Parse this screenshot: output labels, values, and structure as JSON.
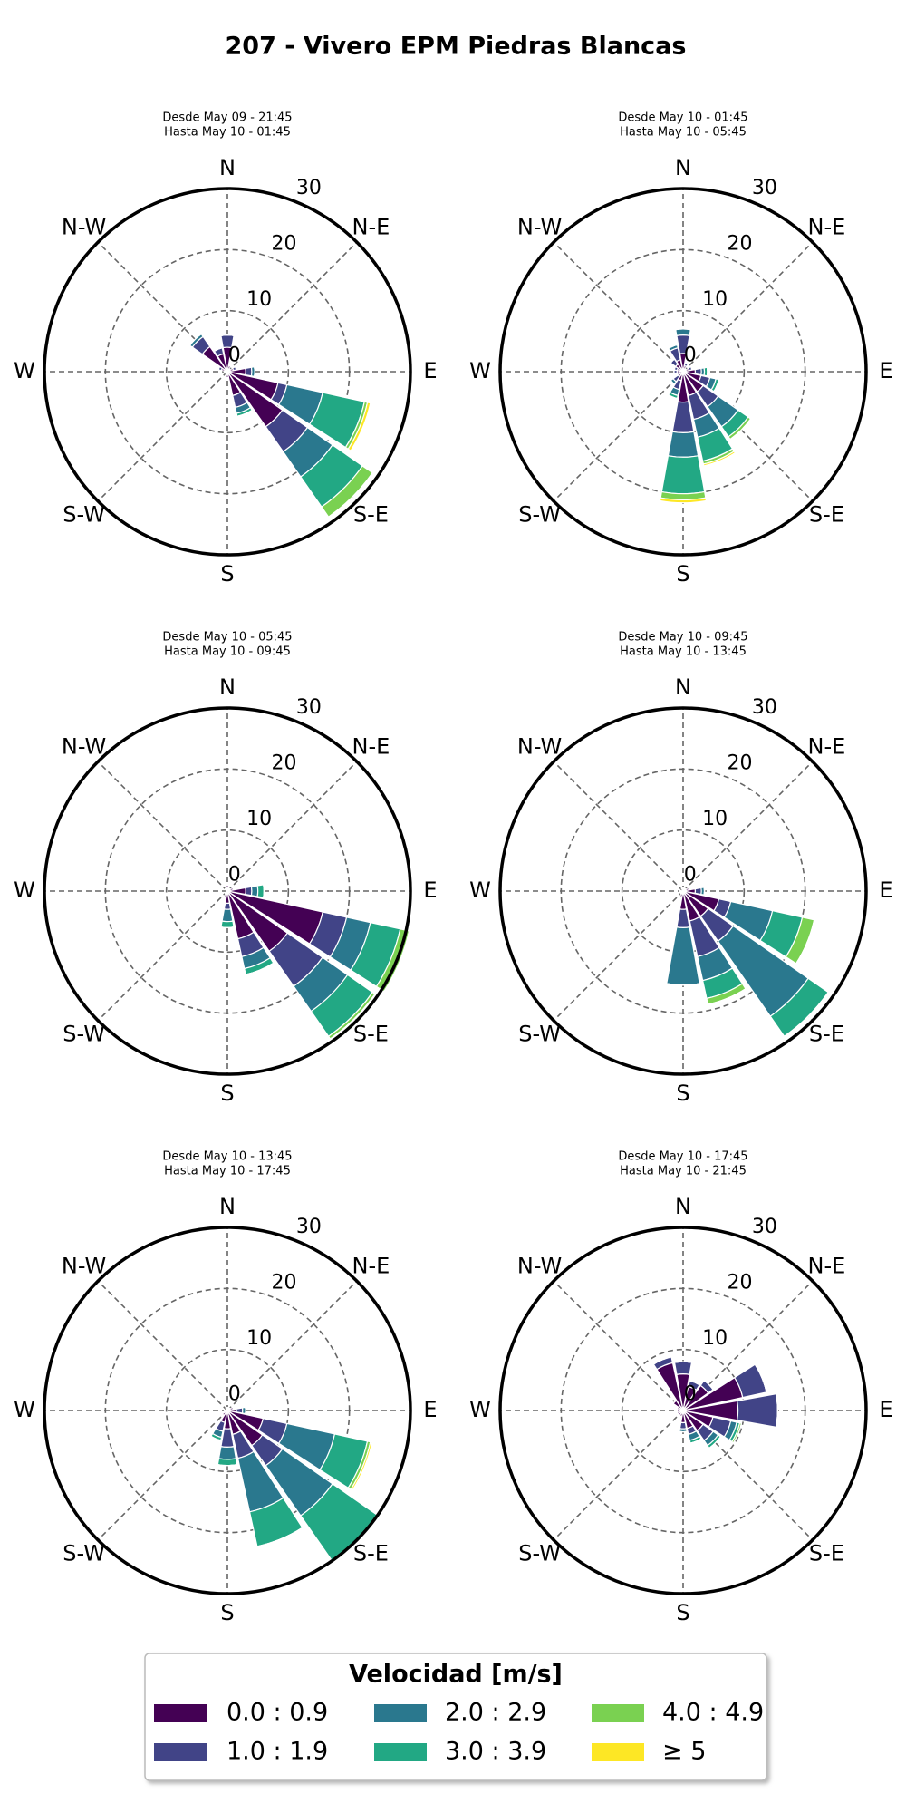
{
  "title": "207 - Vivero EPM Piedras Blancas",
  "legend": {
    "title": "Velocidad [m/s]",
    "entries": [
      {
        "name": "0.0 : 0.9",
        "color": "#440154"
      },
      {
        "name": "1.0 : 1.9",
        "color": "#414487"
      },
      {
        "name": "2.0 : 2.9",
        "color": "#2a788e"
      },
      {
        "name": "3.0 : 3.9",
        "color": "#22a884"
      },
      {
        "name": "4.0 : 4.9",
        "color": "#7ad151"
      },
      {
        "name": "≥ 5",
        "color": "#fde725"
      }
    ]
  },
  "chart_data": [
    {
      "type": "windrose",
      "title": "Desde May 09 - 21:45",
      "subtitle": "Hasta May 10 - 01:45",
      "x": [
        0,
        22.5,
        45,
        67.5,
        90,
        112.5,
        135,
        157.5,
        180,
        202.5,
        225,
        247.5,
        270,
        292.5,
        315,
        337.5
      ],
      "xticks": [
        {
          "value": 0,
          "label": "N"
        },
        {
          "value": 45,
          "label": "N-E"
        },
        {
          "value": 90,
          "label": "E"
        },
        {
          "value": 135,
          "label": "S-E"
        },
        {
          "value": 180,
          "label": "S"
        },
        {
          "value": 225,
          "label": "S-W"
        },
        {
          "value": 270,
          "label": "W"
        },
        {
          "value": 315,
          "label": "N-W"
        }
      ],
      "ylim": [
        0,
        30
      ],
      "yticks": [
        0,
        10,
        20,
        30
      ],
      "series": [
        {
          "values": [
            4,
            1,
            0.5,
            1,
            3,
            8.5,
            11,
            4,
            1,
            0.5,
            0,
            0,
            0.5,
            1,
            5,
            3
          ]
        },
        {
          "values": [
            2,
            0,
            0,
            0.5,
            1,
            1.5,
            5,
            2,
            0,
            0,
            0,
            0,
            0,
            0.5,
            2,
            1
          ]
        },
        {
          "values": [
            0,
            0,
            0,
            0,
            0.5,
            6,
            5,
            1,
            0,
            0,
            0,
            0,
            0,
            0,
            0.5,
            0
          ]
        },
        {
          "values": [
            0,
            0,
            0,
            0,
            0,
            7,
            6,
            0.5,
            0,
            0,
            0,
            0,
            0,
            0,
            0,
            0
          ]
        },
        {
          "values": [
            0,
            0,
            0,
            0,
            0,
            0.5,
            2,
            0,
            0,
            0,
            0,
            0,
            0,
            0,
            0,
            0
          ]
        },
        {
          "values": [
            0,
            0,
            0,
            0,
            0,
            0.5,
            0,
            0,
            0,
            0,
            0,
            0,
            0,
            0,
            0,
            0
          ]
        }
      ]
    },
    {
      "type": "windrose",
      "title": "Desde May 10 - 01:45",
      "subtitle": "Hasta May 10 - 05:45",
      "x": [
        0,
        22.5,
        45,
        67.5,
        90,
        112.5,
        135,
        157.5,
        180,
        202.5,
        225,
        247.5,
        270,
        292.5,
        315,
        337.5
      ],
      "xticks": [
        {
          "value": 0,
          "label": "N"
        },
        {
          "value": 45,
          "label": "N-E"
        },
        {
          "value": 90,
          "label": "E"
        },
        {
          "value": 135,
          "label": "S-E"
        },
        {
          "value": 180,
          "label": "S"
        },
        {
          "value": 225,
          "label": "S-W"
        },
        {
          "value": 270,
          "label": "W"
        },
        {
          "value": 315,
          "label": "N-W"
        }
      ],
      "ylim": [
        0,
        30
      ],
      "yticks": [
        0,
        10,
        20,
        30
      ],
      "series": [
        {
          "values": [
            3,
            1,
            0.5,
            1,
            2,
            3,
            4,
            4,
            5,
            1.5,
            1,
            0.5,
            1,
            1,
            1.5,
            2
          ]
        },
        {
          "values": [
            3,
            0.5,
            0,
            0.5,
            1,
            1.5,
            3,
            4,
            5,
            1.5,
            1,
            0.5,
            0.5,
            0.5,
            1,
            2
          ]
        },
        {
          "values": [
            1,
            0,
            0,
            0,
            0.5,
            1,
            4,
            3,
            4,
            1,
            0.5,
            0,
            0,
            0,
            0,
            0.5
          ]
        },
        {
          "values": [
            0,
            0,
            0,
            0,
            0.5,
            0.5,
            2,
            4,
            6,
            0.5,
            0,
            0,
            0,
            0,
            0,
            0
          ]
        },
        {
          "values": [
            0,
            0,
            0,
            0,
            0,
            0,
            0.5,
            0.5,
            1,
            0,
            0,
            0,
            0,
            0,
            0,
            0
          ]
        },
        {
          "values": [
            0,
            0,
            0,
            0,
            0,
            0,
            0,
            0.3,
            0.5,
            0,
            0,
            0,
            0,
            0,
            0,
            0
          ]
        }
      ]
    },
    {
      "type": "windrose",
      "title": "Desde May 10 - 05:45",
      "subtitle": "Hasta May 10 - 09:45",
      "x": [
        0,
        22.5,
        45,
        67.5,
        90,
        112.5,
        135,
        157.5,
        180,
        202.5,
        225,
        247.5,
        270,
        292.5,
        315,
        337.5
      ],
      "xticks": [
        {
          "value": 0,
          "label": "N"
        },
        {
          "value": 45,
          "label": "N-E"
        },
        {
          "value": 90,
          "label": "E"
        },
        {
          "value": 135,
          "label": "S-E"
        },
        {
          "value": 180,
          "label": "S"
        },
        {
          "value": 225,
          "label": "S-W"
        },
        {
          "value": 270,
          "label": "W"
        },
        {
          "value": 315,
          "label": "N-W"
        }
      ],
      "ylim": [
        0,
        30
      ],
      "yticks": [
        0,
        10,
        20,
        30
      ],
      "series": [
        {
          "values": [
            1,
            0.5,
            0.5,
            1,
            3,
            16,
            12,
            8,
            2,
            1,
            0.5,
            0,
            0,
            0,
            0.5,
            0.5
          ]
        },
        {
          "values": [
            0,
            0,
            0,
            0,
            1,
            4,
            7,
            3,
            1,
            0,
            0,
            0,
            0,
            0,
            0,
            0
          ]
        },
        {
          "values": [
            0,
            0,
            0,
            0,
            1,
            4,
            5,
            2,
            2,
            0,
            0,
            0,
            0,
            0,
            0,
            0
          ]
        },
        {
          "values": [
            0,
            0,
            0,
            0,
            1,
            5,
            5,
            1,
            1,
            0,
            0,
            0,
            0,
            0,
            0,
            0
          ]
        },
        {
          "values": [
            0,
            0,
            0,
            0,
            0,
            1.5,
            0.5,
            0,
            0,
            0,
            0,
            0,
            0,
            0,
            0,
            0
          ]
        },
        {
          "values": [
            0,
            0,
            0,
            0,
            0,
            0,
            0,
            0,
            0,
            0,
            0,
            0,
            0,
            0,
            0,
            0
          ]
        }
      ]
    },
    {
      "type": "windrose",
      "title": "Desde May 10 - 09:45",
      "subtitle": "Hasta May 10 - 13:45",
      "x": [
        0,
        22.5,
        45,
        67.5,
        90,
        112.5,
        135,
        157.5,
        180,
        202.5,
        225,
        247.5,
        270,
        292.5,
        315,
        337.5
      ],
      "xticks": [
        {
          "value": 0,
          "label": "N"
        },
        {
          "value": 45,
          "label": "N-E"
        },
        {
          "value": 90,
          "label": "E"
        },
        {
          "value": 135,
          "label": "S-E"
        },
        {
          "value": 180,
          "label": "S"
        },
        {
          "value": 225,
          "label": "S-W"
        },
        {
          "value": 270,
          "label": "W"
        },
        {
          "value": 315,
          "label": "N-W"
        }
      ],
      "ylim": [
        0,
        30
      ],
      "yticks": [
        0,
        10,
        20,
        30
      ],
      "series": [
        {
          "values": [
            0.5,
            0.5,
            0.5,
            1,
            2,
            6,
            5,
            5,
            3,
            1,
            0.5,
            0,
            0.5,
            0,
            0,
            0.5
          ]
        },
        {
          "values": [
            0,
            0,
            0,
            0,
            1,
            2,
            5,
            6,
            3,
            0,
            0,
            0,
            0,
            0,
            0,
            0
          ]
        },
        {
          "values": [
            0,
            0,
            0,
            0,
            0.5,
            7,
            15,
            4,
            9.4,
            0,
            0,
            0,
            0,
            0,
            0,
            0
          ]
        },
        {
          "values": [
            0,
            0,
            0,
            0,
            0,
            5,
            4,
            3,
            0,
            0,
            0,
            0,
            0,
            0,
            0,
            0
          ]
        },
        {
          "values": [
            0,
            0,
            0,
            0,
            0,
            2,
            0,
            1,
            0,
            0,
            0,
            0,
            0,
            0,
            0,
            0
          ]
        },
        {
          "values": [
            0,
            0,
            0,
            0,
            0,
            0,
            0,
            0,
            0,
            0,
            0,
            0,
            0,
            0,
            0,
            0
          ]
        }
      ]
    },
    {
      "type": "windrose",
      "title": "Desde May 10 - 13:45",
      "subtitle": "Hasta May 10 - 17:45",
      "x": [
        0,
        22.5,
        45,
        67.5,
        90,
        112.5,
        135,
        157.5,
        180,
        202.5,
        225,
        247.5,
        270,
        292.5,
        315,
        337.5
      ],
      "xticks": [
        {
          "value": 0,
          "label": "N"
        },
        {
          "value": 45,
          "label": "N-E"
        },
        {
          "value": 90,
          "label": "E"
        },
        {
          "value": 135,
          "label": "S-E"
        },
        {
          "value": 180,
          "label": "S"
        },
        {
          "value": 225,
          "label": "S-W"
        },
        {
          "value": 270,
          "label": "W"
        },
        {
          "value": 315,
          "label": "N-W"
        }
      ],
      "ylim": [
        0,
        30
      ],
      "yticks": [
        0,
        10,
        20,
        30
      ],
      "series": [
        {
          "values": [
            0.5,
            0.5,
            0.5,
            1,
            1.5,
            6,
            7,
            4,
            3,
            2,
            1,
            0.5,
            0.5,
            0,
            0,
            0.5
          ]
        },
        {
          "values": [
            0,
            0,
            0,
            0,
            1,
            4,
            4,
            4,
            3,
            1.5,
            0,
            0,
            0,
            0,
            0,
            0
          ]
        },
        {
          "values": [
            0,
            0,
            0,
            0,
            0.5,
            8,
            10,
            9,
            2,
            1,
            0,
            0,
            0,
            0,
            0,
            0
          ]
        },
        {
          "values": [
            0,
            0,
            0,
            0,
            0,
            5.5,
            9,
            5.8,
            1,
            0.5,
            0,
            0,
            0,
            0,
            0,
            0
          ]
        },
        {
          "values": [
            0,
            0,
            0,
            0,
            0,
            0.5,
            0,
            0,
            0,
            0,
            0,
            0,
            0,
            0,
            0,
            0
          ]
        },
        {
          "values": [
            0,
            0,
            0,
            0,
            0,
            0.3,
            0,
            0,
            0,
            0,
            0,
            0,
            0,
            0,
            0,
            0
          ]
        }
      ]
    },
    {
      "type": "windrose",
      "title": "Desde May 10 - 17:45",
      "subtitle": "Hasta May 10 - 21:45",
      "x": [
        0,
        22.5,
        45,
        67.5,
        90,
        112.5,
        135,
        157.5,
        180,
        202.5,
        225,
        247.5,
        270,
        292.5,
        315,
        337.5
      ],
      "xticks": [
        {
          "value": 0,
          "label": "N"
        },
        {
          "value": 45,
          "label": "N-E"
        },
        {
          "value": 90,
          "label": "E"
        },
        {
          "value": 135,
          "label": "S-E"
        },
        {
          "value": 180,
          "label": "S"
        },
        {
          "value": 225,
          "label": "S-W"
        },
        {
          "value": 270,
          "label": "W"
        },
        {
          "value": 315,
          "label": "N-W"
        }
      ],
      "ylim": [
        0,
        30
      ],
      "yticks": [
        0,
        10,
        20,
        30
      ],
      "series": [
        {
          "values": [
            6,
            4,
            5,
            10,
            9,
            5,
            4,
            3,
            2,
            1,
            1,
            1,
            1,
            1,
            2,
            8
          ]
        },
        {
          "values": [
            2,
            1,
            1,
            4,
            6.5,
            3,
            2,
            1,
            1,
            0,
            0,
            0,
            0,
            0,
            0,
            1
          ]
        },
        {
          "values": [
            0,
            0,
            0,
            0,
            0,
            1,
            1,
            1,
            0.5,
            0,
            0,
            0,
            0,
            0,
            0,
            0
          ]
        },
        {
          "values": [
            0,
            0,
            0,
            0,
            0,
            0.5,
            0.5,
            0.5,
            0,
            0,
            0,
            0,
            0,
            0,
            0,
            0
          ]
        },
        {
          "values": [
            0,
            0,
            0,
            0,
            0,
            0.3,
            0,
            0,
            0,
            0,
            0,
            0,
            0,
            0,
            0,
            0
          ]
        },
        {
          "values": [
            0,
            0,
            0,
            0,
            0,
            0,
            0,
            0,
            0,
            0,
            0,
            0,
            0,
            0,
            0,
            0
          ]
        }
      ]
    }
  ]
}
